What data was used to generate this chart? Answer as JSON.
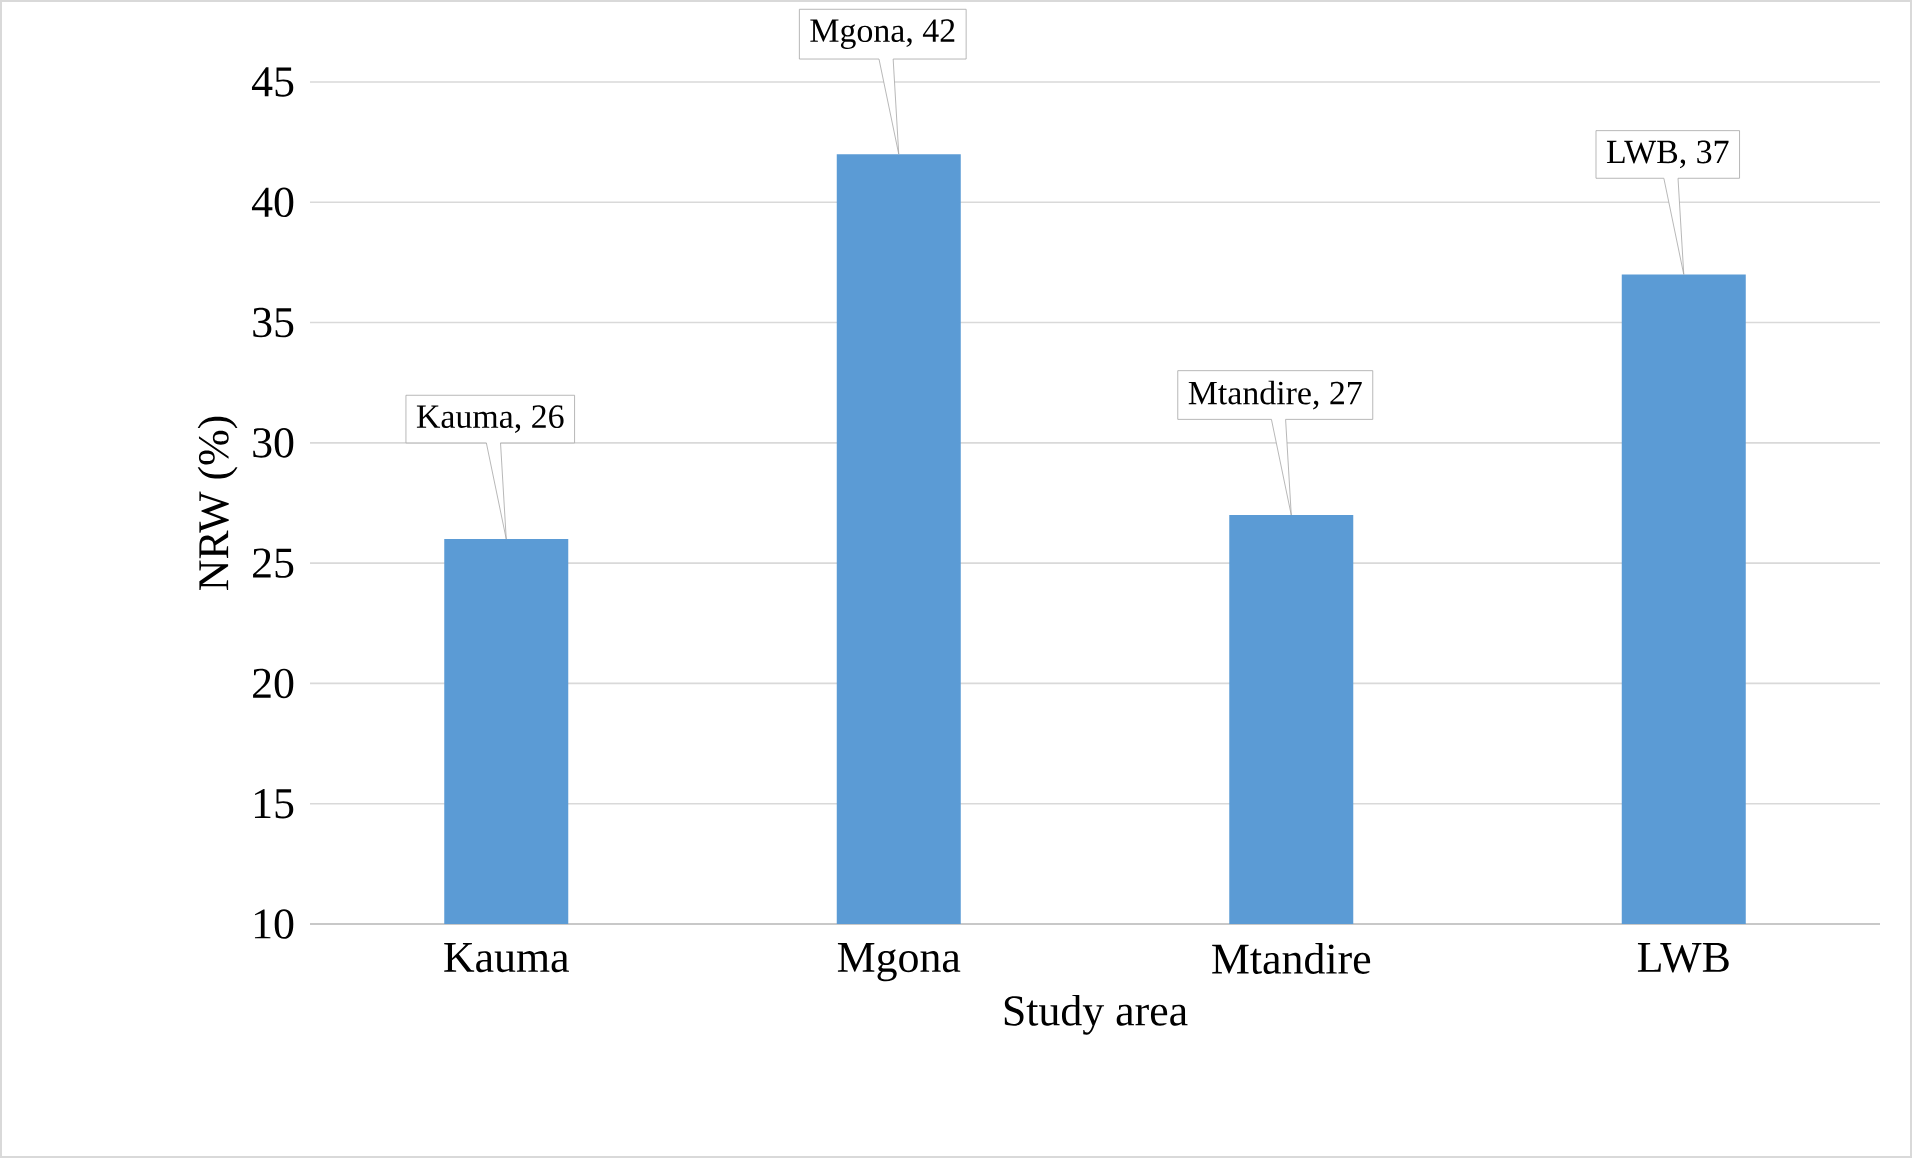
{
  "chart_data": {
    "type": "bar",
    "xlabel": "Study area",
    "ylabel": "NRW (%)",
    "categories": [
      "Kauma",
      "Mgona",
      "Mtandire",
      "LWB"
    ],
    "values": [
      26,
      42,
      27,
      37
    ],
    "value_labels": [
      "Kauma, 26",
      "Mgona, 42",
      "Mtandire, 27",
      "LWB, 37"
    ],
    "color": "#5b9bd5",
    "ylim": [
      10,
      45
    ],
    "yticks": [
      10,
      15,
      20,
      25,
      30,
      35,
      40,
      45
    ],
    "grid": "y"
  }
}
